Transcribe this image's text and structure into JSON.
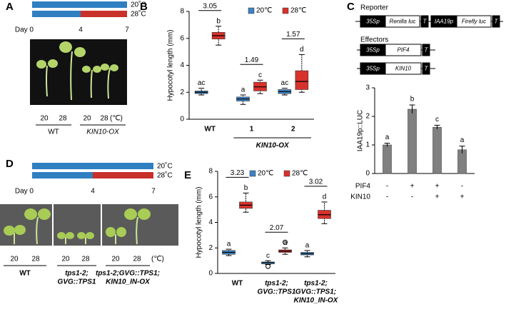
{
  "panel_labels": [
    "A",
    "B",
    "C",
    "D",
    "E"
  ],
  "panel_a": {
    "timeline": {
      "temps": [
        "20˚C",
        "28˚C"
      ],
      "day_label": "Day 0",
      "days": [
        4,
        7
      ]
    },
    "temps": [
      20,
      28,
      20,
      28
    ],
    "unit": "(℃)",
    "genotypes": [
      "WT",
      "KIN10-OX"
    ]
  },
  "panel_c_diagram": {
    "reporter_title": "Reporter",
    "reporter": [
      "35Sp",
      "Renilla luc",
      "T",
      "IAA19p",
      "Firefly luc",
      "T"
    ],
    "effectors_title": "Effectors",
    "effector_1": [
      "35Sp",
      "PIF4",
      "T"
    ],
    "effector_2": [
      "35Sp",
      "KIN10",
      "T"
    ]
  },
  "panel_d": {
    "timeline": {
      "temps": [
        "20˚C",
        "28˚C"
      ],
      "day_label": "Day 0",
      "days": [
        4,
        7
      ]
    },
    "temps": [
      20,
      28,
      20,
      28,
      20,
      28
    ],
    "unit": "(℃)",
    "genotypes": [
      [
        "WT"
      ],
      [
        "tps1-2;",
        "GVG::TPS1"
      ],
      [
        "tps1-2;GVG::TPS1;",
        "KIN10_IN-OX"
      ]
    ]
  },
  "chart_data": [
    {
      "type": "box",
      "y_label": "Hypocotyl length (mm)",
      "ylim": [
        0,
        8
      ],
      "yticks": [
        0,
        2,
        4,
        6,
        8
      ],
      "groups": [
        [
          "WT"
        ],
        [
          "1"
        ],
        [
          "2"
        ]
      ],
      "group_label": "KIN10-OX",
      "series": [
        {
          "name": "20℃",
          "color": "#3d82c4",
          "boxes": [
            [
              1.8,
              1.9,
              2.0,
              2.1,
              2.3
            ],
            [
              1.1,
              1.35,
              1.5,
              1.65,
              1.8
            ],
            [
              1.8,
              1.9,
              2.05,
              2.2,
              2.3
            ]
          ],
          "letters": [
            "ac",
            "a",
            "ac"
          ]
        },
        {
          "name": "28℃",
          "color": "#d8322c",
          "boxes": [
            [
              5.5,
              5.95,
              6.2,
              6.45,
              6.9
            ],
            [
              1.9,
              2.1,
              2.4,
              2.75,
              2.9
            ],
            [
              2.0,
              2.2,
              2.8,
              3.6,
              4.8
            ]
          ],
          "letters": [
            "b",
            "c",
            "d"
          ]
        }
      ],
      "comparisons": [
        3.05,
        1.49,
        1.57
      ]
    },
    {
      "type": "bar",
      "y_label": "IAA19p::LUC",
      "ylim": [
        0,
        3
      ],
      "yticks": [
        0,
        1,
        2,
        3
      ],
      "values": [
        1.0,
        2.25,
        1.62,
        0.83
      ],
      "errors": [
        0.06,
        0.15,
        0.07,
        0.13
      ],
      "letters": [
        "a",
        "b",
        "c",
        "a"
      ],
      "color": "#808080",
      "conditions": [
        {
          "name": "PIF4",
          "values": [
            "-",
            "+",
            "+",
            "-"
          ]
        },
        {
          "name": "KIN10",
          "values": [
            "-",
            "-",
            "+",
            "+"
          ]
        }
      ]
    },
    {
      "type": "box",
      "y_label": "Hypocotyl length (mm)",
      "ylim": [
        0,
        8
      ],
      "yticks": [
        0,
        2,
        4,
        6,
        8
      ],
      "groups": [
        [
          "WT"
        ],
        [
          "tps1-2;",
          "GVG::TPS1"
        ],
        [
          "tps1-2;",
          "GVG::TPS1;",
          "KIN10_IN-OX"
        ]
      ],
      "series": [
        {
          "name": "20℃",
          "color": "#3d82c4",
          "boxes": [
            [
              1.4,
              1.5,
              1.65,
              1.8,
              1.9
            ],
            [
              0.7,
              0.75,
              0.85,
              0.9,
              1.0
            ],
            [
              1.3,
              1.45,
              1.55,
              1.65,
              1.8
            ]
          ],
          "outliers": [
            [],
            [
              0.55
            ],
            []
          ],
          "letters": [
            "a",
            "c",
            "a"
          ]
        },
        {
          "name": "28℃",
          "color": "#d8322c",
          "boxes": [
            [
              4.8,
              5.1,
              5.35,
              5.6,
              6.3
            ],
            [
              1.5,
              1.65,
              1.75,
              1.85,
              2.0
            ],
            [
              3.9,
              4.3,
              4.6,
              4.95,
              5.6
            ]
          ],
          "outliers": [
            [],
            [
              2.45
            ],
            []
          ],
          "letters": [
            "b",
            "a",
            "d"
          ]
        }
      ],
      "comparisons": [
        3.23,
        2.07,
        3.02
      ]
    }
  ]
}
